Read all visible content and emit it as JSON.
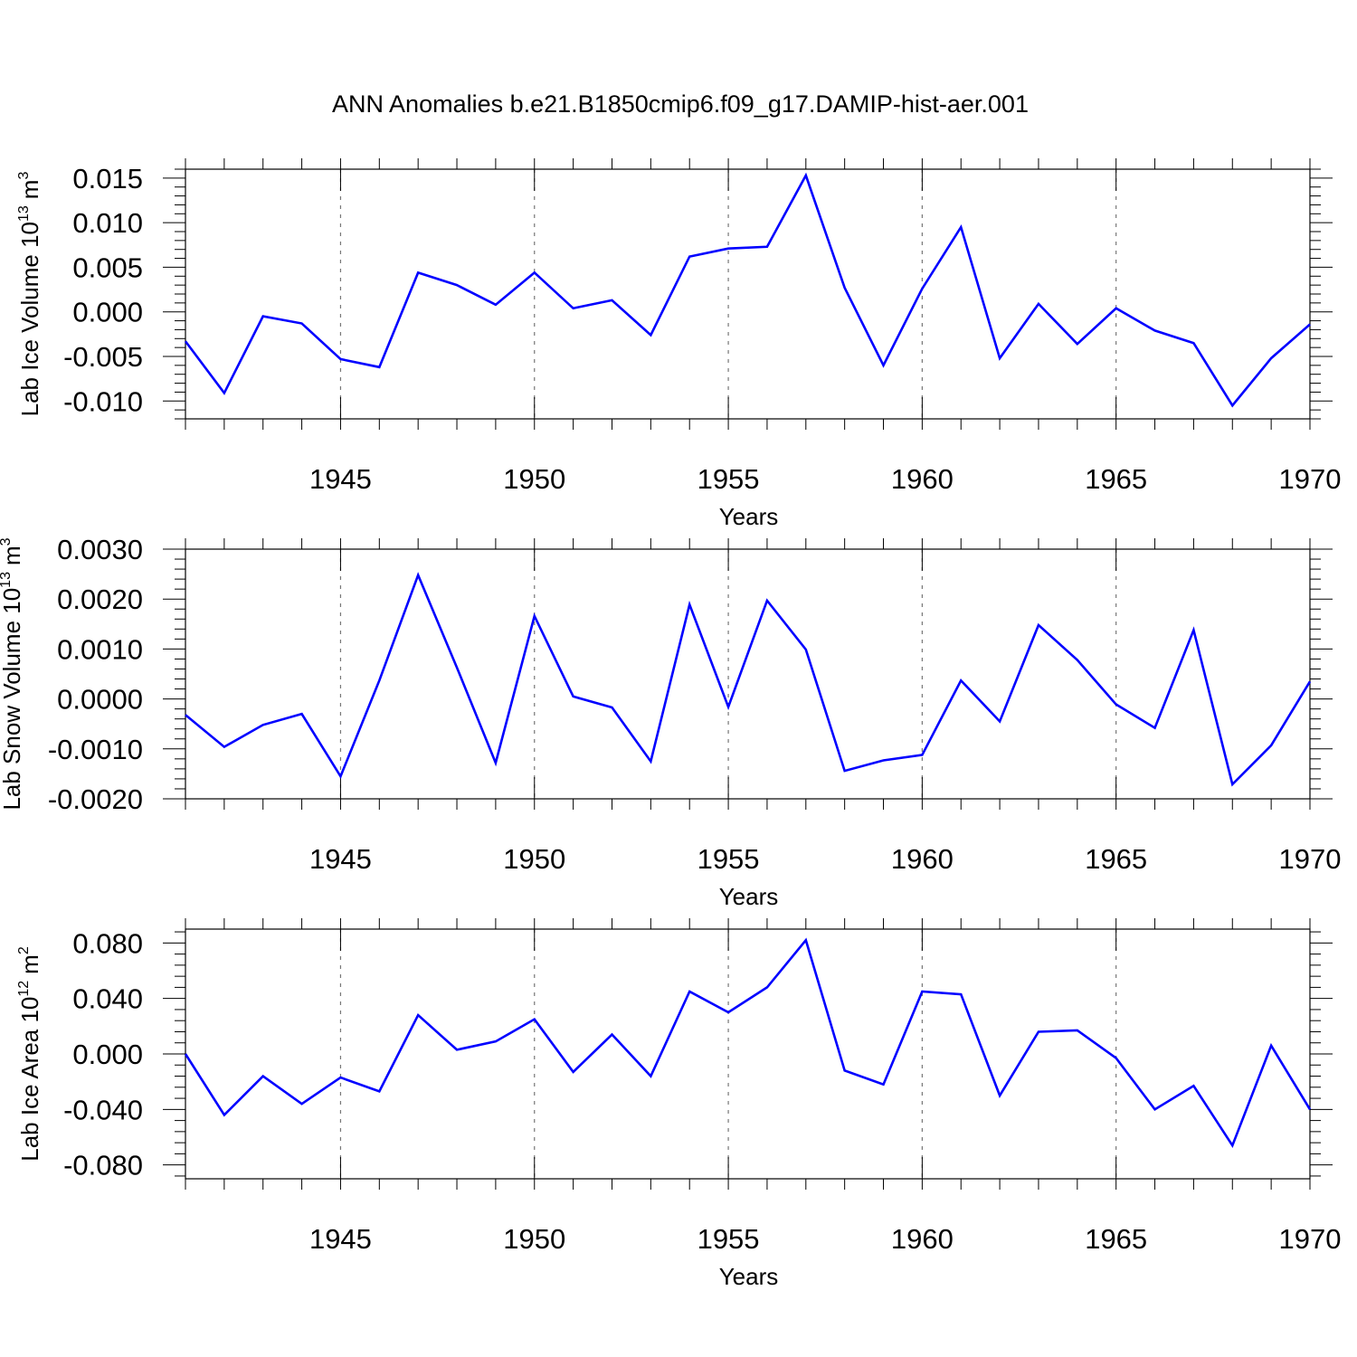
{
  "figure": {
    "title": "ANN Anomalies b.e21.B1850cmip6.f09_g17.DAMIP-hist-aer.001",
    "line_color": "#0000ff"
  },
  "chart_data": [
    {
      "type": "line",
      "xlabel": "Years",
      "ylabel": "Lab Ice Volume 10",
      "ylabel_exp": "13",
      "ylabel_unit": "m",
      "ylabel_unit_exp": "3",
      "xlim": [
        1941,
        1970
      ],
      "ylim": [
        -0.012,
        0.016
      ],
      "x_ticks": [
        1945,
        1950,
        1955,
        1960,
        1965,
        1970
      ],
      "y_ticks": [
        0.015,
        0.01,
        0.005,
        0.0,
        -0.005,
        -0.01
      ],
      "y_tick_labels": [
        "0.015",
        "0.010",
        "0.005",
        "0.000",
        "-0.005",
        "-0.010"
      ],
      "grid": "vertical dashed at major x ticks",
      "series": [
        {
          "name": "Lab Ice Volume",
          "x": [
            1941,
            1942,
            1943,
            1944,
            1945,
            1946,
            1947,
            1948,
            1949,
            1950,
            1951,
            1952,
            1953,
            1954,
            1955,
            1956,
            1957,
            1958,
            1959,
            1960,
            1961,
            1962,
            1963,
            1964,
            1965,
            1966,
            1967,
            1968,
            1969,
            1970
          ],
          "values": [
            -0.0033,
            -0.0091,
            -0.0005,
            -0.0013,
            -0.0053,
            -0.0062,
            0.0044,
            0.003,
            0.0008,
            0.0044,
            0.0004,
            0.0013,
            -0.0026,
            0.0062,
            0.0071,
            0.0073,
            0.0153,
            0.0027,
            -0.006,
            0.0026,
            0.0095,
            -0.0052,
            0.0009,
            -0.0036,
            0.0004,
            -0.0021,
            -0.0035,
            -0.0105,
            -0.0052,
            -0.0014
          ]
        }
      ]
    },
    {
      "type": "line",
      "xlabel": "Years",
      "ylabel": "Lab Snow Volume 10",
      "ylabel_exp": "13",
      "ylabel_unit": "m",
      "ylabel_unit_exp": "3",
      "xlim": [
        1941,
        1970
      ],
      "ylim": [
        -0.002,
        0.003
      ],
      "x_ticks": [
        1945,
        1950,
        1955,
        1960,
        1965,
        1970
      ],
      "y_ticks": [
        0.003,
        0.002,
        0.001,
        0.0,
        -0.001,
        -0.002
      ],
      "y_tick_labels": [
        "0.0030",
        "0.0020",
        "0.0010",
        "0.0000",
        "-0.0010",
        "-0.0020"
      ],
      "grid": "vertical dashed at major x ticks",
      "series": [
        {
          "name": "Lab Snow Volume",
          "x": [
            1941,
            1942,
            1943,
            1944,
            1945,
            1946,
            1947,
            1948,
            1949,
            1950,
            1951,
            1952,
            1953,
            1954,
            1955,
            1956,
            1957,
            1958,
            1959,
            1960,
            1961,
            1962,
            1963,
            1964,
            1965,
            1966,
            1967,
            1968,
            1969,
            1970
          ],
          "values": [
            -0.00032,
            -0.00096,
            -0.00052,
            -0.0003,
            -0.00155,
            0.00037,
            0.00248,
            0.00063,
            -0.00128,
            0.00166,
            5e-05,
            -0.00017,
            -0.00125,
            0.00189,
            -0.00016,
            0.00197,
            0.00099,
            -0.00144,
            -0.00123,
            -0.00112,
            0.00037,
            -0.00045,
            0.00148,
            0.00078,
            -0.00011,
            -0.00058,
            0.00138,
            -0.00171,
            -0.00093,
            0.00035
          ]
        }
      ]
    },
    {
      "type": "line",
      "xlabel": "Years",
      "ylabel": "Lab Ice Area 10",
      "ylabel_exp": "12",
      "ylabel_unit": "m",
      "ylabel_unit_exp": "2",
      "xlim": [
        1941,
        1970
      ],
      "ylim": [
        -0.09,
        0.09
      ],
      "x_ticks": [
        1945,
        1950,
        1955,
        1960,
        1965,
        1970
      ],
      "y_ticks": [
        0.08,
        0.04,
        0.0,
        -0.04,
        -0.08
      ],
      "y_tick_labels": [
        "0.080",
        "0.040",
        "0.000",
        "-0.040",
        "-0.080"
      ],
      "grid": "vertical dashed at major x ticks",
      "series": [
        {
          "name": "Lab Ice Area",
          "x": [
            1941,
            1942,
            1943,
            1944,
            1945,
            1946,
            1947,
            1948,
            1949,
            1950,
            1951,
            1952,
            1953,
            1954,
            1955,
            1956,
            1957,
            1958,
            1959,
            1960,
            1961,
            1962,
            1963,
            1964,
            1965,
            1966,
            1967,
            1968,
            1969,
            1970
          ],
          "values": [
            0.0,
            -0.044,
            -0.016,
            -0.036,
            -0.017,
            -0.027,
            0.028,
            0.003,
            0.009,
            0.025,
            -0.013,
            0.014,
            -0.016,
            0.045,
            0.03,
            0.048,
            0.082,
            -0.012,
            -0.022,
            0.045,
            0.043,
            -0.03,
            0.016,
            0.017,
            -0.003,
            -0.04,
            -0.023,
            -0.066,
            0.006,
            -0.04
          ]
        }
      ]
    }
  ]
}
